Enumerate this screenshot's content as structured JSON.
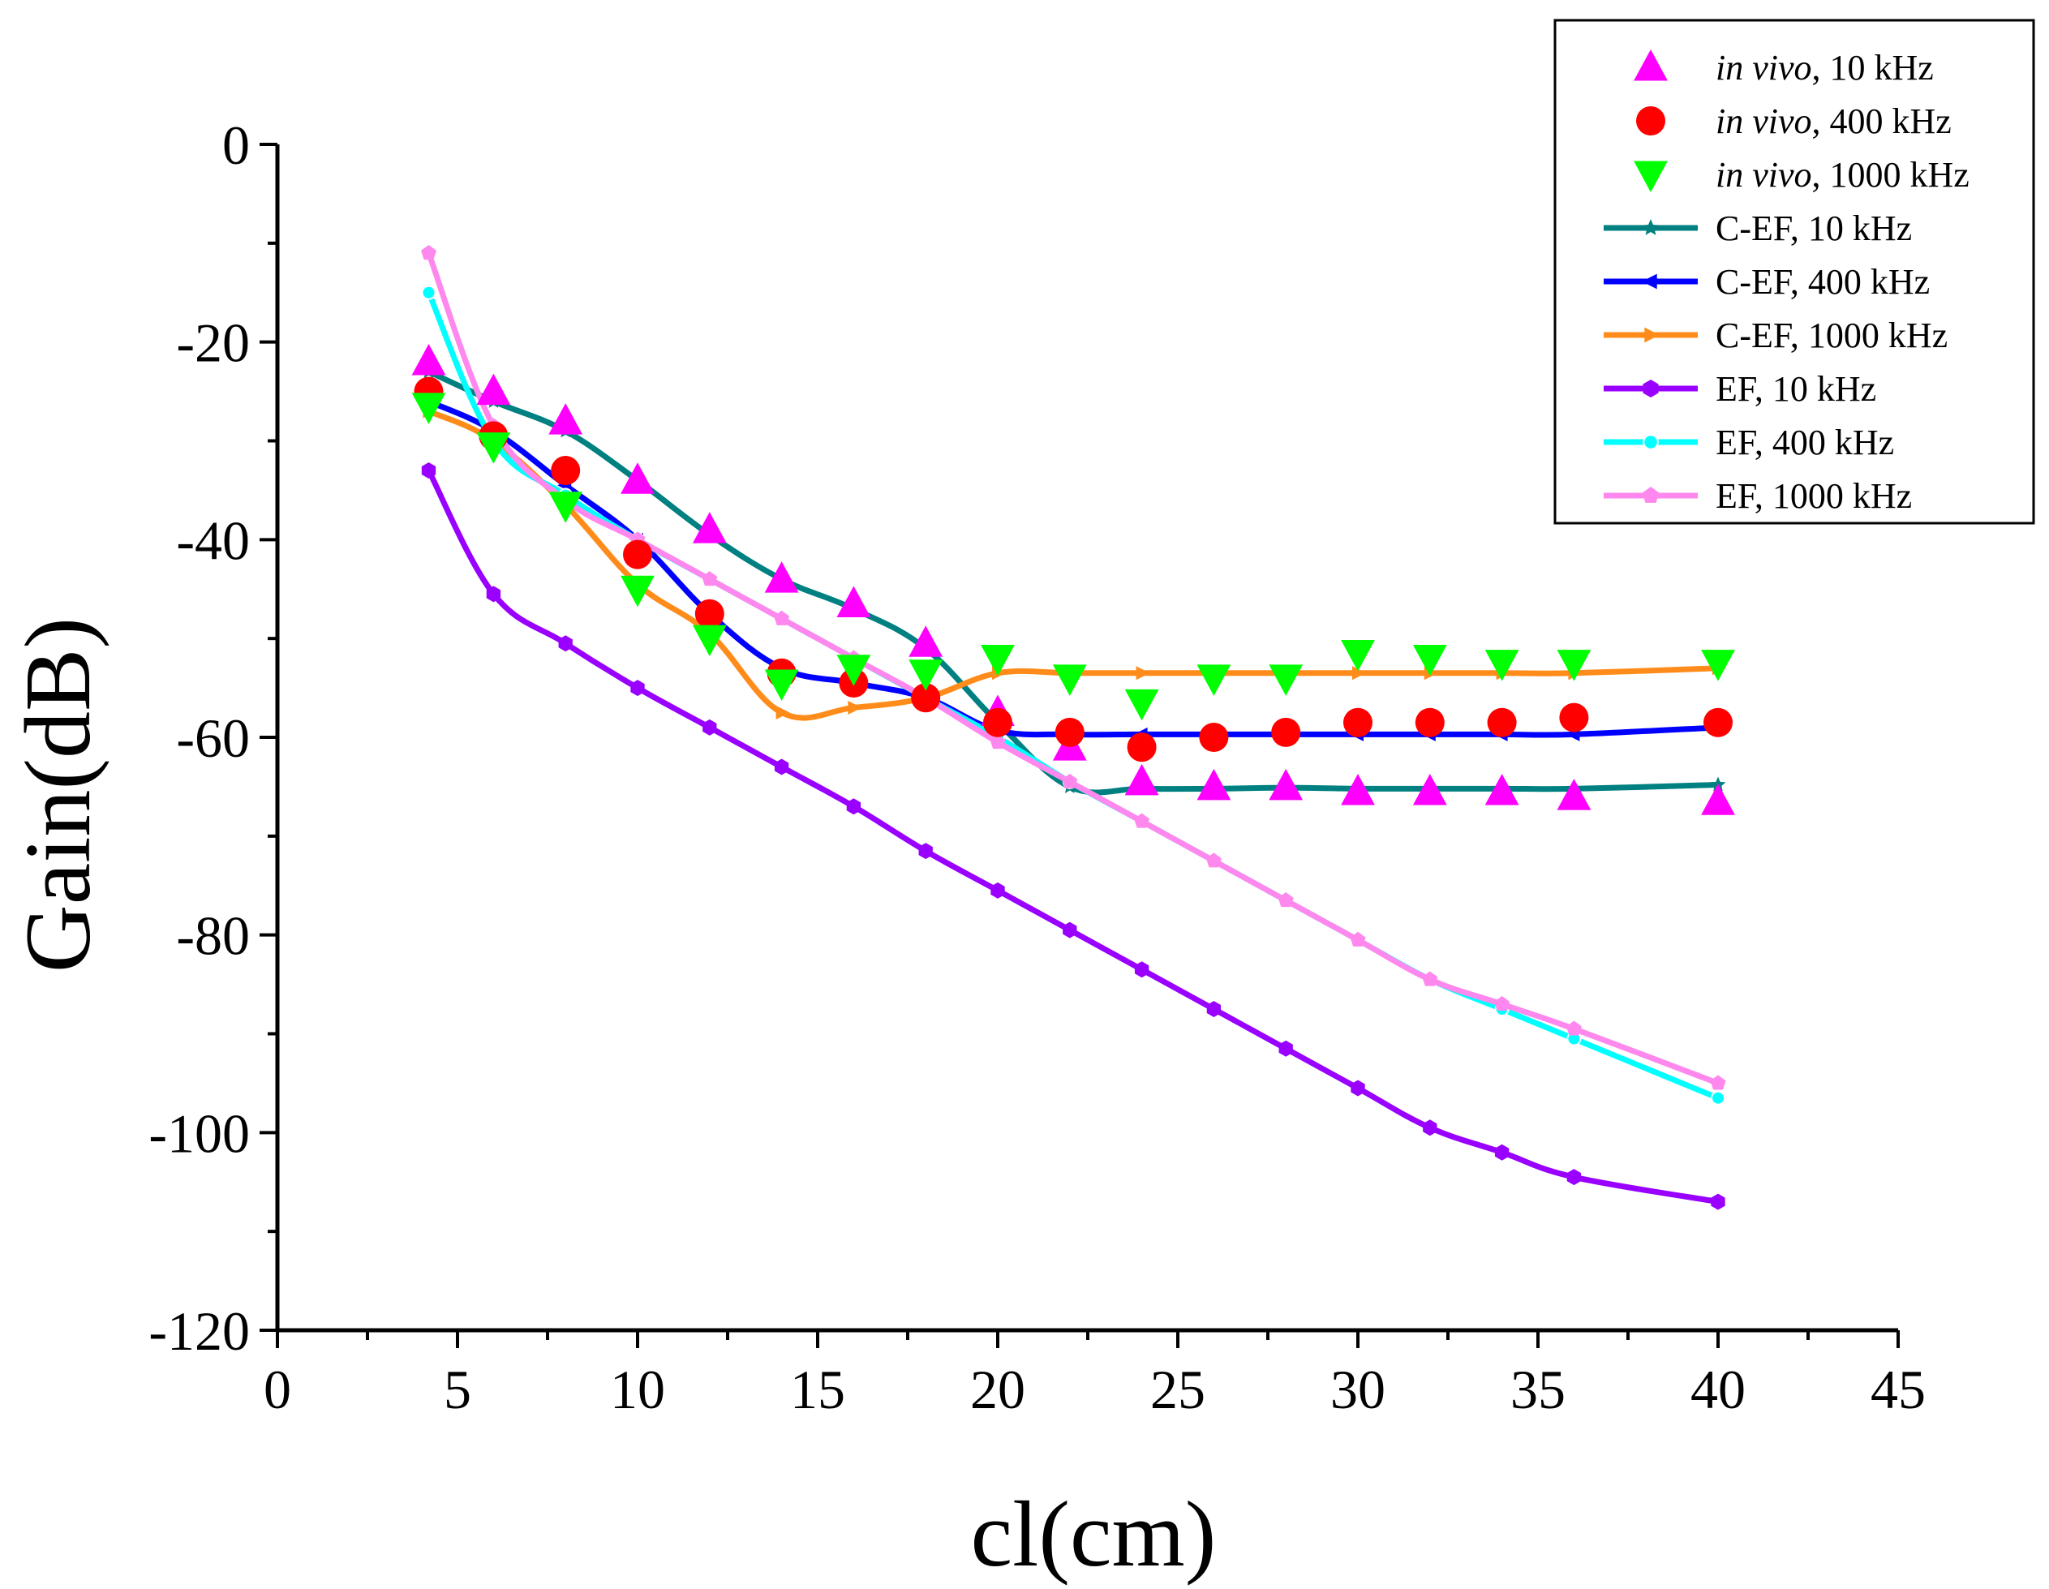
{
  "chart_data": {
    "type": "line",
    "title": "",
    "xlabel": "cl(cm)",
    "ylabel": "Gain(dB)",
    "xlim": [
      0,
      45
    ],
    "ylim": [
      -120,
      0
    ],
    "x_ticks": [
      0,
      5,
      10,
      15,
      20,
      25,
      30,
      35,
      40,
      45
    ],
    "x_tick_labels": [
      "0",
      "5",
      "10",
      "15",
      "20",
      "25",
      "30",
      "35",
      "40",
      "45"
    ],
    "y_ticks": [
      0,
      -20,
      -40,
      -60,
      -80,
      -100,
      -120
    ],
    "y_tick_labels": [
      "0",
      "-20",
      "-40",
      "-60",
      "-80",
      "-100",
      "-120"
    ],
    "grid": false,
    "legend_position": "top-right",
    "series": [
      {
        "name_italic": "in vivo",
        "name_rest": ", 10 kHz",
        "style": "markers",
        "marker": "triangle-up",
        "color": "#FF00FF",
        "x": [
          4.2,
          6,
          8,
          10,
          12,
          14,
          16,
          18,
          20,
          22,
          24,
          26,
          28,
          30,
          32,
          34,
          36,
          40
        ],
        "y": [
          -22,
          -25,
          -28,
          -34,
          -39,
          -44,
          -46.5,
          -50.5,
          -57.5,
          -61,
          -64.5,
          -65,
          -65,
          -65.5,
          -65.5,
          -65.5,
          -66,
          -66.5
        ]
      },
      {
        "name_italic": "in vivo",
        "name_rest": ", 400 kHz",
        "style": "markers",
        "marker": "circle",
        "color": "#FF0000",
        "x": [
          4.2,
          6,
          8,
          10,
          12,
          14,
          16,
          18,
          20,
          22,
          24,
          26,
          28,
          30,
          32,
          34,
          36,
          40
        ],
        "y": [
          -25,
          -29.5,
          -33,
          -41.5,
          -47.5,
          -53.5,
          -54.5,
          -56,
          -58.5,
          -59.5,
          -61,
          -60,
          -59.5,
          -58.5,
          -58.5,
          -58.5,
          -58,
          -58.5
        ]
      },
      {
        "name_italic": "in vivo",
        "name_rest": ", 1000 kHz",
        "style": "markers",
        "marker": "triangle-down",
        "color": "#00FF00",
        "x": [
          4.2,
          6,
          8,
          10,
          12,
          14,
          16,
          18,
          20,
          22,
          24,
          26,
          28,
          30,
          32,
          34,
          36,
          40
        ],
        "y": [
          -26.5,
          -30.5,
          -36.5,
          -45,
          -50,
          -54.5,
          -53,
          -53.5,
          -52,
          -54,
          -56.5,
          -54,
          -54,
          -51.5,
          -52,
          -52.5,
          -52.5,
          -52.5
        ]
      },
      {
        "name_italic": "",
        "name_rest": "C-EF, 10 kHz",
        "style": "line",
        "marker": "star",
        "color": "#008080",
        "x": [
          4.2,
          6,
          8,
          10,
          12,
          14,
          16,
          18,
          20,
          22,
          24,
          26,
          28,
          30,
          32,
          34,
          36,
          40
        ],
        "y": [
          -23,
          -26,
          -29,
          -34,
          -39.5,
          -44,
          -47,
          -51,
          -58.5,
          -65,
          -65.2,
          -65.2,
          -65.1,
          -65.2,
          -65.2,
          -65.2,
          -65.2,
          -64.8
        ]
      },
      {
        "name_italic": "",
        "name_rest": "C-EF, 400 kHz",
        "style": "line",
        "marker": "triangle-left",
        "color": "#0000FF",
        "x": [
          4.2,
          6,
          8,
          10,
          12,
          14,
          16,
          18,
          20,
          22,
          24,
          26,
          28,
          30,
          32,
          34,
          36,
          40
        ],
        "y": [
          -26,
          -29,
          -34.5,
          -40,
          -47.5,
          -53,
          -54.5,
          -56,
          -59.3,
          -59.7,
          -59.7,
          -59.7,
          -59.7,
          -59.7,
          -59.7,
          -59.7,
          -59.7,
          -59
        ]
      },
      {
        "name_italic": "",
        "name_rest": "C-EF, 1000 kHz",
        "style": "line",
        "marker": "triangle-right",
        "color": "#FF8C1A",
        "x": [
          4.2,
          6,
          8,
          10,
          12,
          14,
          16,
          18,
          20,
          22,
          24,
          26,
          28,
          30,
          32,
          34,
          36,
          40
        ],
        "y": [
          -27,
          -30,
          -36.5,
          -44.5,
          -49.5,
          -57.5,
          -57,
          -56,
          -53.5,
          -53.5,
          -53.5,
          -53.5,
          -53.5,
          -53.5,
          -53.5,
          -53.5,
          -53.5,
          -53
        ]
      },
      {
        "name_italic": "",
        "name_rest": "EF, 10 kHz",
        "style": "line",
        "marker": "hexagon",
        "color": "#9900FF",
        "x": [
          4.2,
          6,
          8,
          10,
          12,
          14,
          16,
          18,
          20,
          22,
          24,
          26,
          28,
          30,
          32,
          34,
          36,
          40
        ],
        "y": [
          -33,
          -45.5,
          -50.5,
          -55,
          -59,
          -63,
          -67,
          -71.5,
          -75.5,
          -79.5,
          -83.5,
          -87.5,
          -91.5,
          -95.5,
          -99.5,
          -102,
          -104.5,
          -107
        ]
      },
      {
        "name_italic": "",
        "name_rest": "EF, 400 kHz",
        "style": "line",
        "marker": "circle-small",
        "color": "#00FFFF",
        "x": [
          4.2,
          6,
          8,
          10,
          12,
          14,
          16,
          18,
          20,
          22,
          24,
          26,
          28,
          30,
          32,
          34,
          36,
          40
        ],
        "y": [
          -15,
          -30,
          -35.5,
          -40,
          -44,
          -48,
          -52,
          -56,
          -60,
          -64.5,
          -68.5,
          -72.5,
          -76.5,
          -80.5,
          -84.5,
          -87.5,
          -90.5,
          -96.5
        ]
      },
      {
        "name_italic": "",
        "name_rest": "EF, 1000 kHz",
        "style": "line",
        "marker": "pentagon",
        "color": "#FF88EE",
        "x": [
          4.2,
          6,
          8,
          10,
          12,
          14,
          16,
          18,
          20,
          22,
          24,
          26,
          28,
          30,
          32,
          34,
          36,
          40
        ],
        "y": [
          -11,
          -28.5,
          -36,
          -40,
          -44,
          -48,
          -52,
          -56,
          -60.5,
          -64.5,
          -68.5,
          -72.5,
          -76.5,
          -80.5,
          -84.5,
          -87,
          -89.5,
          -95
        ]
      }
    ]
  }
}
